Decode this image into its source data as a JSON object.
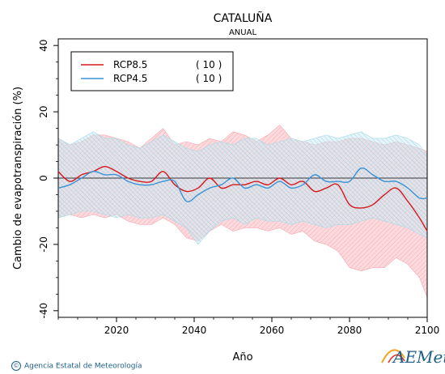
{
  "chart_data": {
    "type": "line",
    "title": "CATALUÑA",
    "subtitle": "ANUAL",
    "xlabel": "Año",
    "ylabel": "Cambio de evapotranspiración (%)",
    "xlim": [
      2005,
      2100
    ],
    "ylim": [
      -42,
      42
    ],
    "x_ticks": [
      2020,
      2040,
      2060,
      2080,
      2100
    ],
    "y_ticks": [
      -40,
      -20,
      0,
      20,
      40
    ],
    "reference_line": 0,
    "legend_position": "top-left",
    "x": [
      2005,
      2008,
      2011,
      2014,
      2017,
      2020,
      2023,
      2026,
      2029,
      2032,
      2035,
      2038,
      2041,
      2044,
      2047,
      2050,
      2053,
      2056,
      2059,
      2062,
      2065,
      2068,
      2071,
      2074,
      2077,
      2080,
      2083,
      2086,
      2089,
      2092,
      2095,
      2098,
      2100
    ],
    "series": [
      {
        "name": "RCP8.5",
        "count_label": "( 10 )",
        "color": "#d7191c",
        "band_color": "#f7a8b0",
        "values": [
          2,
          -1,
          1,
          2,
          3.5,
          2,
          0,
          -1,
          -1,
          2,
          -2,
          -4,
          -3,
          0,
          -3,
          -2,
          -2,
          -1,
          -2,
          0,
          -2,
          -1,
          -4,
          -3,
          -2,
          -8,
          -9,
          -8,
          -5,
          -3,
          -7,
          -12,
          -16
        ],
        "upper": [
          12,
          10,
          11,
          13,
          13,
          12,
          11,
          9,
          12,
          15,
          10,
          11,
          10,
          12,
          11,
          14,
          13,
          11,
          13,
          16,
          12,
          11,
          10,
          11,
          11,
          12,
          12,
          11,
          10,
          11,
          10,
          9,
          8
        ],
        "lower": [
          -12,
          -11,
          -12,
          -11,
          -12,
          -11,
          -13,
          -14,
          -14,
          -12,
          -14,
          -18,
          -19,
          -16,
          -14,
          -16,
          -15,
          -15,
          -16,
          -15,
          -17,
          -16,
          -19,
          -20,
          -22,
          -27,
          -28,
          -27,
          -27,
          -24,
          -26,
          -30,
          -36
        ]
      },
      {
        "name": "RCP4.5",
        "count_label": "( 10 )",
        "color": "#3a93d6",
        "band_color": "#a7dbe8",
        "values": [
          -3,
          -2,
          0,
          2,
          1,
          1,
          -1,
          -2,
          -2,
          -1,
          -1,
          -7,
          -5,
          -3,
          -2,
          0,
          -3,
          -2,
          -3,
          -1,
          -3,
          -2,
          1,
          -1,
          -1,
          -1,
          3,
          1,
          -1,
          -1,
          -3,
          -6,
          -6
        ],
        "upper": [
          12,
          10,
          12,
          14,
          12,
          12,
          10,
          9,
          11,
          13,
          11,
          9,
          8,
          10,
          11,
          10,
          12,
          12,
          10,
          11,
          12,
          11,
          12,
          13,
          12,
          13,
          14,
          12,
          12,
          13,
          12,
          10,
          7
        ],
        "lower": [
          -12,
          -11,
          -10,
          -10,
          -11,
          -12,
          -11,
          -12,
          -12,
          -11,
          -13,
          -15,
          -20,
          -16,
          -13,
          -12,
          -14,
          -12,
          -13,
          -13,
          -14,
          -13,
          -14,
          -15,
          -14,
          -14,
          -13,
          -12,
          -13,
          -14,
          -15,
          -17,
          -18
        ]
      }
    ]
  },
  "footer": {
    "copyright": "Agencia Estatal de Meteorología"
  },
  "logo": {
    "text": "AEMet",
    "subtitle": "Agencia Estatal de Meteorología"
  }
}
